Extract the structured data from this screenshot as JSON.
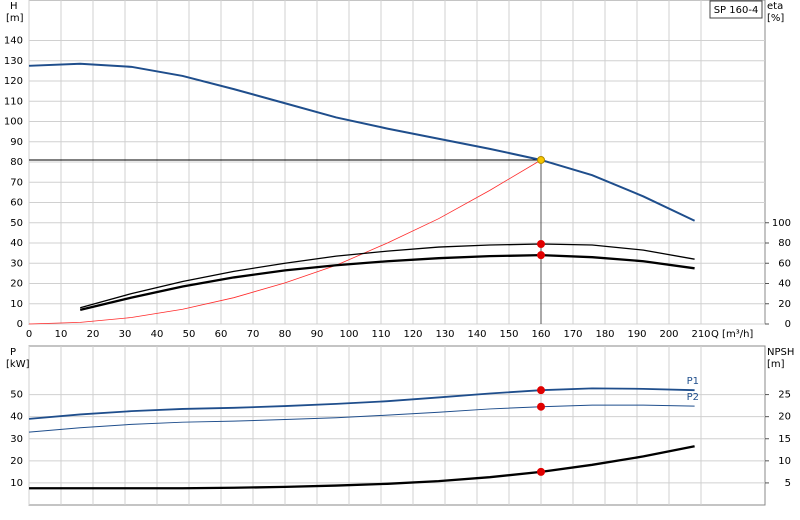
{
  "chart_data": [
    {
      "type": "line",
      "title": "SP 160-4",
      "xlabel": "Q [m³/h]",
      "ylabel": "H",
      "yunit": "[m]",
      "y2label": "eta",
      "y2unit": "[%]",
      "x": [
        0,
        16,
        32,
        48,
        64,
        80,
        96,
        112,
        128,
        144,
        160,
        176,
        192,
        208
      ],
      "xlim": [
        0,
        230
      ],
      "xticks": [
        0,
        10,
        20,
        30,
        40,
        50,
        60,
        70,
        80,
        90,
        100,
        110,
        120,
        130,
        140,
        150,
        160,
        170,
        180,
        190,
        200,
        210
      ],
      "ylim": [
        0,
        160
      ],
      "yticks": [
        0,
        10,
        20,
        30,
        40,
        50,
        60,
        70,
        80,
        90,
        100,
        110,
        120,
        130,
        140
      ],
      "y2lim": [
        0,
        320
      ],
      "y2ticks": [
        0,
        20,
        40,
        60,
        80,
        100
      ],
      "grid": true,
      "show_xtick_labels": true,
      "highlight_index": 10,
      "duty_lines": true,
      "series": [
        {
          "color": "#1f4e8c",
          "width": 2,
          "marker_color": "#f7c600",
          "values": [
            127.5,
            128.5,
            127,
            122.5,
            116,
            109,
            102,
            96.5,
            91.5,
            86.5,
            81,
            73.5,
            63,
            51
          ]
        },
        {
          "color": "#ff2a2a",
          "width": 0.8,
          "values": [
            0,
            0.8,
            3.2,
            7.3,
            13,
            20.3,
            29,
            40,
            52,
            66,
            81,
            null,
            null,
            null
          ]
        },
        {
          "color": "#000000",
          "width": 1.3,
          "axis": "y2",
          "marker_color": "#e00000",
          "values": [
            null,
            16,
            30,
            42,
            52,
            60,
            67,
            72,
            76,
            78,
            79,
            78,
            73,
            64
          ]
        },
        {
          "color": "#000000",
          "width": 2.3,
          "axis": "y2",
          "marker_color": "#e00000",
          "values": [
            null,
            14,
            26,
            37,
            46,
            53,
            58,
            62,
            65,
            67,
            68,
            66,
            62,
            55
          ]
        }
      ]
    },
    {
      "type": "line",
      "ylabel": "P",
      "yunit": "[kW]",
      "y2label": "NPSH",
      "y2unit": "[m]",
      "x": [
        0,
        16,
        32,
        48,
        64,
        80,
        96,
        112,
        128,
        144,
        160,
        176,
        192,
        208
      ],
      "xlim": [
        0,
        230
      ],
      "xticks": [
        0,
        10,
        20,
        30,
        40,
        50,
        60,
        70,
        80,
        90,
        100,
        110,
        120,
        130,
        140,
        150,
        160,
        170,
        180,
        190,
        200,
        210
      ],
      "ylim": [
        0,
        72
      ],
      "yticks": [
        10,
        20,
        30,
        40,
        50
      ],
      "y2lim": [
        0,
        36
      ],
      "y2ticks": [
        5,
        10,
        15,
        20,
        25
      ],
      "grid": true,
      "show_xtick_labels": false,
      "highlight_index": 10,
      "duty_lines": false,
      "series": [
        {
          "name": "P1",
          "color": "#1f4e8c",
          "width": 1.8,
          "marker_color": "#e00000",
          "values": [
            39,
            41,
            42.5,
            43.5,
            44,
            44.8,
            45.8,
            47,
            48.7,
            50.5,
            52,
            52.8,
            52.6,
            52
          ]
        },
        {
          "name": "P2",
          "color": "#1f4e8c",
          "width": 1,
          "marker_color": "#e00000",
          "values": [
            33,
            35,
            36.5,
            37.5,
            38,
            38.7,
            39.5,
            40.7,
            42,
            43.5,
            44.5,
            45.2,
            45.2,
            44.8
          ]
        },
        {
          "color": "#000000",
          "width": 2.3,
          "axis": "y2",
          "marker_color": "#e00000",
          "values": [
            3.8,
            3.8,
            3.8,
            3.8,
            3.9,
            4.1,
            4.4,
            4.8,
            5.4,
            6.3,
            7.5,
            9.1,
            11,
            13.3
          ]
        }
      ]
    }
  ]
}
